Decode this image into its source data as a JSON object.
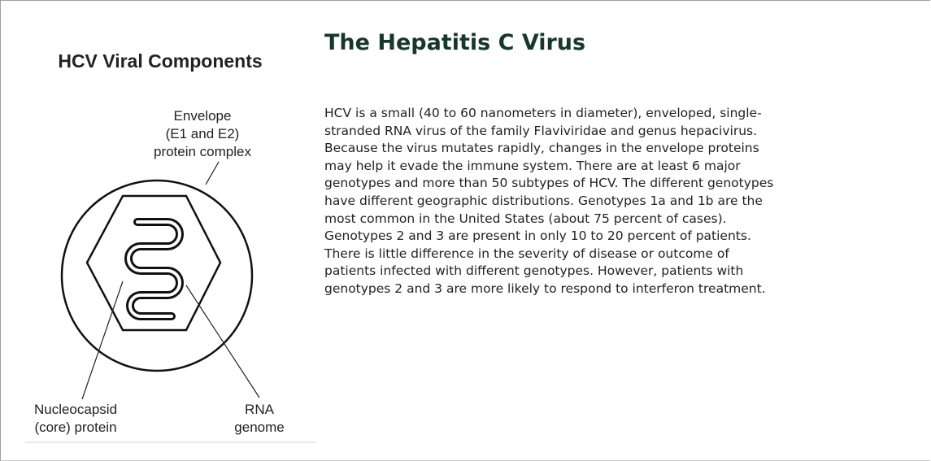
{
  "diagram": {
    "title": "HCV Viral Components",
    "envelope_label": [
      "Envelope",
      "(E1 and E2)",
      "protein complex"
    ],
    "nucleocapsid_label": [
      "Nucleocapsid",
      "(core) protein"
    ],
    "rna_label": [
      "RNA",
      "genome"
    ]
  },
  "article": {
    "title": "The Hepatitis C Virus",
    "lines": [
      "HCV is a small (40 to 60 nanometers in diameter), enveloped, single-",
      "stranded RNA virus of the family Flaviviridae and genus hepacivirus.",
      "Because the virus mutates rapidly, changes in the envelope proteins",
      "may help it evade the immune system. There are at least 6 major",
      "genotypes and more than 50 subtypes of HCV. The different genotypes",
      "have different geographic distributions. Genotypes 1a and 1b are the",
      "most common in the United States (about 75 percent of cases).",
      "Genotypes 2 and 3 are present in only 10 to 20 percent of patients.",
      "There is little difference in the severity of disease or outcome of",
      "patients infected with different genotypes. However, patients with",
      "genotypes 2 and 3 are more likely to respond to interferon treatment."
    ]
  }
}
